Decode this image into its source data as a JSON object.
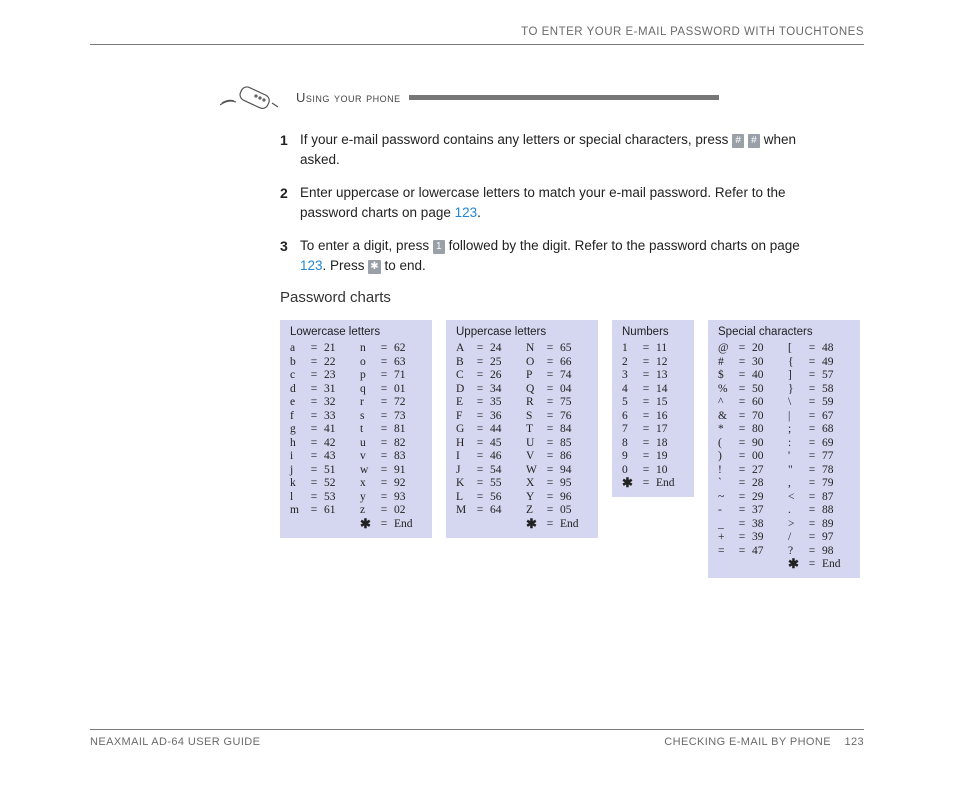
{
  "header": {
    "top_heading": "TO ENTER YOUR E-MAIL PASSWORD WITH TOUCHTONES"
  },
  "section": {
    "title": "Using your phone"
  },
  "steps": [
    {
      "num": "1",
      "pre": "If your e-mail password contains any letters or special characters, press ",
      "keys": [
        "#",
        "#"
      ],
      "post": " when asked."
    },
    {
      "num": "2",
      "pre": "Enter uppercase or lowercase letters to match your e-mail password. Refer to the password charts on page ",
      "link": "123",
      "post": "."
    },
    {
      "num": "3",
      "pre": "To enter a digit, press ",
      "keys": [
        "1"
      ],
      "mid": " followed by the digit. Refer to the password charts on page ",
      "link": "123",
      "mid2": ". Press ",
      "keys2": [
        "✱"
      ],
      "post": " to end."
    }
  ],
  "charts_title": "Password charts",
  "charts": {
    "lowercase": {
      "title": "Lowercase letters",
      "cols": [
        [
          [
            "a",
            "21"
          ],
          [
            "b",
            "22"
          ],
          [
            "c",
            "23"
          ],
          [
            "d",
            "31"
          ],
          [
            "e",
            "32"
          ],
          [
            "f",
            "33"
          ],
          [
            "g",
            "41"
          ],
          [
            "h",
            "42"
          ],
          [
            "i",
            "43"
          ],
          [
            "j",
            "51"
          ],
          [
            "k",
            "52"
          ],
          [
            "l",
            "53"
          ],
          [
            "m",
            "61"
          ]
        ],
        [
          [
            "n",
            "62"
          ],
          [
            "o",
            "63"
          ],
          [
            "p",
            "71"
          ],
          [
            "q",
            "01"
          ],
          [
            "r",
            "72"
          ],
          [
            "s",
            "73"
          ],
          [
            "t",
            "81"
          ],
          [
            "u",
            "82"
          ],
          [
            "v",
            "83"
          ],
          [
            "w",
            "91"
          ],
          [
            "x",
            "92"
          ],
          [
            "y",
            "93"
          ],
          [
            "z",
            "02"
          ],
          [
            "✱",
            "End"
          ]
        ]
      ]
    },
    "uppercase": {
      "title": "Uppercase letters",
      "cols": [
        [
          [
            "A",
            "24"
          ],
          [
            "B",
            "25"
          ],
          [
            "C",
            "26"
          ],
          [
            "D",
            "34"
          ],
          [
            "E",
            "35"
          ],
          [
            "F",
            "36"
          ],
          [
            "G",
            "44"
          ],
          [
            "H",
            "45"
          ],
          [
            "I",
            "46"
          ],
          [
            "J",
            "54"
          ],
          [
            "K",
            "55"
          ],
          [
            "L",
            "56"
          ],
          [
            "M",
            "64"
          ]
        ],
        [
          [
            "N",
            "65"
          ],
          [
            "O",
            "66"
          ],
          [
            "P",
            "74"
          ],
          [
            "Q",
            "04"
          ],
          [
            "R",
            "75"
          ],
          [
            "S",
            "76"
          ],
          [
            "T",
            "84"
          ],
          [
            "U",
            "85"
          ],
          [
            "V",
            "86"
          ],
          [
            "W",
            "94"
          ],
          [
            "X",
            "95"
          ],
          [
            "Y",
            "96"
          ],
          [
            "Z",
            "05"
          ],
          [
            "✱",
            "End"
          ]
        ]
      ]
    },
    "numbers": {
      "title": "Numbers",
      "cols": [
        [
          [
            "1",
            "11"
          ],
          [
            "2",
            "12"
          ],
          [
            "3",
            "13"
          ],
          [
            "4",
            "14"
          ],
          [
            "5",
            "15"
          ],
          [
            "6",
            "16"
          ],
          [
            "7",
            "17"
          ],
          [
            "8",
            "18"
          ],
          [
            "9",
            "19"
          ],
          [
            "0",
            "10"
          ],
          [
            "✱",
            "End"
          ]
        ]
      ]
    },
    "special": {
      "title": "Special characters",
      "cols": [
        [
          [
            "@",
            "20"
          ],
          [
            "#",
            "30"
          ],
          [
            "$",
            "40"
          ],
          [
            "%",
            "50"
          ],
          [
            "^",
            "60"
          ],
          [
            "&",
            "70"
          ],
          [
            "*",
            "80"
          ],
          [
            "(",
            "90"
          ],
          [
            ")",
            "00"
          ],
          [
            "!",
            "27"
          ],
          [
            "`",
            "28"
          ],
          [
            "~",
            "29"
          ],
          [
            "-",
            "37"
          ],
          [
            "_",
            "38"
          ],
          [
            "+",
            "39"
          ],
          [
            "=",
            "47"
          ]
        ],
        [
          [
            "[",
            "48"
          ],
          [
            "{",
            "49"
          ],
          [
            "]",
            "57"
          ],
          [
            "}",
            "58"
          ],
          [
            "\\",
            "59"
          ],
          [
            "|",
            "67"
          ],
          [
            ";",
            "68"
          ],
          [
            ":",
            "69"
          ],
          [
            "'",
            "77"
          ],
          [
            "\"",
            "78"
          ],
          [
            ",",
            "79"
          ],
          [
            "<",
            "87"
          ],
          [
            ".",
            "88"
          ],
          [
            ">",
            "89"
          ],
          [
            "/",
            "97"
          ],
          [
            "?",
            "98"
          ],
          [
            "✱",
            "End"
          ]
        ]
      ]
    }
  },
  "footer": {
    "left": "NEAXMAIL AD-64 USER GUIDE",
    "right_text": "CHECKING E-MAIL BY PHONE",
    "page": "123"
  },
  "colors": {
    "chart_bg": "#d4d7ef",
    "link": "#1e87d6",
    "key_bg": "#9aa0a8",
    "rule": "#7a7a7a",
    "muted": "#6a6a6a"
  }
}
